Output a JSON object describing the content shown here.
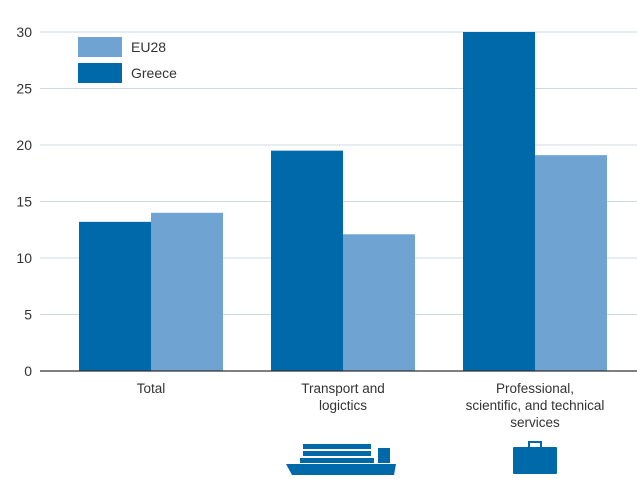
{
  "chart_data": {
    "type": "bar",
    "categories": [
      "Total",
      "Transport and logictics",
      "Professional, scientific, and technical services"
    ],
    "category_label_lines": [
      [
        "Total"
      ],
      [
        "Transport and",
        "logictics"
      ],
      [
        "Professional,",
        "scientific, and technical",
        "services"
      ]
    ],
    "series": [
      {
        "name": "Greece",
        "color": "#0069aa",
        "values": [
          13.2,
          19.5,
          30.0
        ]
      },
      {
        "name": "EU28",
        "color": "#6fa3d1",
        "values": [
          14.0,
          12.1,
          19.1
        ]
      }
    ],
    "legend_order": [
      "EU28",
      "Greece"
    ],
    "legend_position": "top-left",
    "ylim": [
      0,
      30
    ],
    "yticks": [
      "0",
      "5",
      "10",
      "15",
      "20",
      "25",
      "30"
    ],
    "grid": true,
    "category_icons": [
      null,
      "cargo-ship-icon",
      "briefcase-icon"
    ]
  }
}
